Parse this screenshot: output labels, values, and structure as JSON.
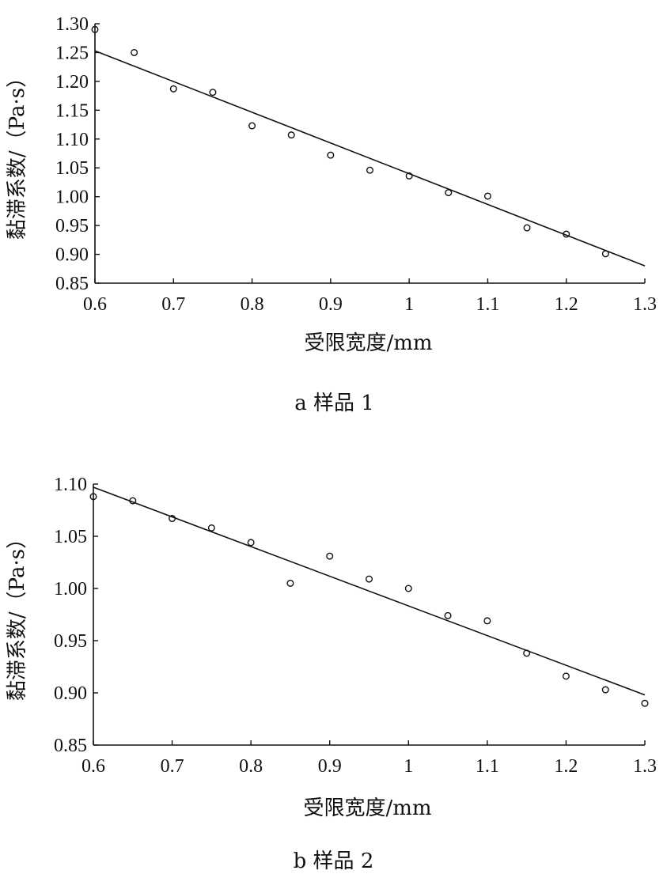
{
  "chart_data": [
    {
      "type": "scatter",
      "caption": "a 样品 1",
      "xlabel": "受限宽度/mm",
      "ylabel": "黏滞系数/（Pa·s）",
      "xlim": [
        0.6,
        1.3
      ],
      "ylim": [
        0.85,
        1.3
      ],
      "xticks": [
        "0.6",
        "0.7",
        "0.8",
        "0.9",
        "1",
        "1.1",
        "1.2",
        "1.3"
      ],
      "yticks": [
        "0.85",
        "0.90",
        "0.95",
        "1.00",
        "1.05",
        "1.10",
        "1.15",
        "1.20",
        "1.25",
        "1.30"
      ],
      "grid": false,
      "series": [
        {
          "marker": "circle",
          "x": [
            0.6,
            0.65,
            0.7,
            0.75,
            0.8,
            0.85,
            0.9,
            0.95,
            1.0,
            1.05,
            1.1,
            1.15,
            1.2,
            1.25
          ],
          "y": [
            1.29,
            1.25,
            1.187,
            1.181,
            1.123,
            1.107,
            1.072,
            1.046,
            1.036,
            1.007,
            1.001,
            0.946,
            0.935,
            0.901
          ]
        }
      ],
      "fit_line": {
        "x": [
          0.6,
          1.3
        ],
        "y": [
          1.253,
          0.88
        ]
      }
    },
    {
      "type": "scatter",
      "caption": "b 样品 2",
      "xlabel": "受限宽度/mm",
      "ylabel": "黏滞系数/（Pa·s）",
      "xlim": [
        0.6,
        1.3
      ],
      "ylim": [
        0.85,
        1.1
      ],
      "xticks": [
        "0.6",
        "0.7",
        "0.8",
        "0.9",
        "1",
        "1.1",
        "1.2",
        "1.3"
      ],
      "yticks": [
        "0.85",
        "0.90",
        "0.95",
        "1.00",
        "1.05",
        "1.10"
      ],
      "grid": false,
      "series": [
        {
          "marker": "circle",
          "x": [
            0.6,
            0.65,
            0.7,
            0.75,
            0.8,
            0.85,
            0.9,
            0.95,
            1.0,
            1.05,
            1.1,
            1.15,
            1.2,
            1.25,
            1.3
          ],
          "y": [
            1.088,
            1.084,
            1.067,
            1.058,
            1.044,
            1.005,
            1.031,
            1.009,
            1.0,
            0.974,
            0.969,
            0.938,
            0.916,
            0.903,
            0.89
          ]
        }
      ],
      "fit_line": {
        "x": [
          0.6,
          1.3
        ],
        "y": [
          1.097,
          0.898
        ]
      }
    }
  ]
}
